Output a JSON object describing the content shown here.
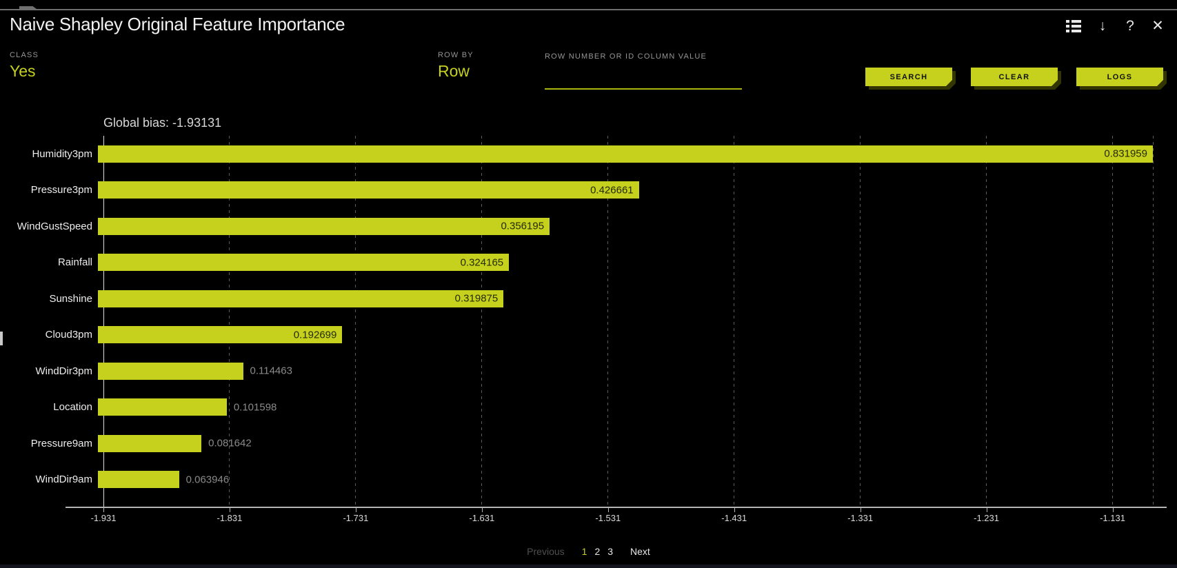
{
  "accent_color": "#c5d11d",
  "window": {
    "title": "Naive Shapley Original Feature Importance",
    "icons": {
      "download_glyph": "↓",
      "help_glyph": "?",
      "close_glyph": "✕"
    }
  },
  "controls": {
    "class_field": {
      "label": "CLASS",
      "value": "Yes"
    },
    "row_by_field": {
      "label": "ROW BY",
      "value": "Row"
    },
    "row_search_field": {
      "label": "ROW NUMBER OR ID COLUMN VALUE",
      "value": ""
    },
    "search_button": "SEARCH",
    "clear_button": "CLEAR",
    "logs_button": "LOGS"
  },
  "chart_data": {
    "type": "bar",
    "orientation": "horizontal",
    "title": "Global bias: -1.93131",
    "global_bias": -1.93131,
    "categories": [
      "Humidity3pm",
      "Pressure3pm",
      "WindGustSpeed",
      "Rainfall",
      "Sunshine",
      "Cloud3pm",
      "WindDir3pm",
      "Location",
      "Pressure9am",
      "WindDir9am"
    ],
    "values": [
      0.831959,
      0.426661,
      0.356195,
      0.324165,
      0.319875,
      0.192699,
      0.114463,
      0.101598,
      0.081642,
      0.063946
    ],
    "value_labels": [
      "0.831959",
      "0.426661",
      "0.356195",
      "0.324165",
      "0.319875",
      "0.192699",
      "0.114463",
      "0.101598",
      "0.081642",
      "0.063946"
    ],
    "x_tick_labels": [
      "-1.931",
      "-1.831",
      "-1.731",
      "-1.631",
      "-1.531",
      "-1.431",
      "-1.331",
      "-1.231",
      "-1.131"
    ],
    "xlim": [
      -1.931,
      -1.099041
    ],
    "x_tick_interval": 0.1,
    "grid": "vertical-dashed",
    "bar_color": "#c5d11d",
    "legend": "none"
  },
  "pagination": {
    "previous_label": "Previous",
    "pages": [
      "1",
      "2",
      "3"
    ],
    "active_page": "1",
    "next_label": "Next"
  }
}
